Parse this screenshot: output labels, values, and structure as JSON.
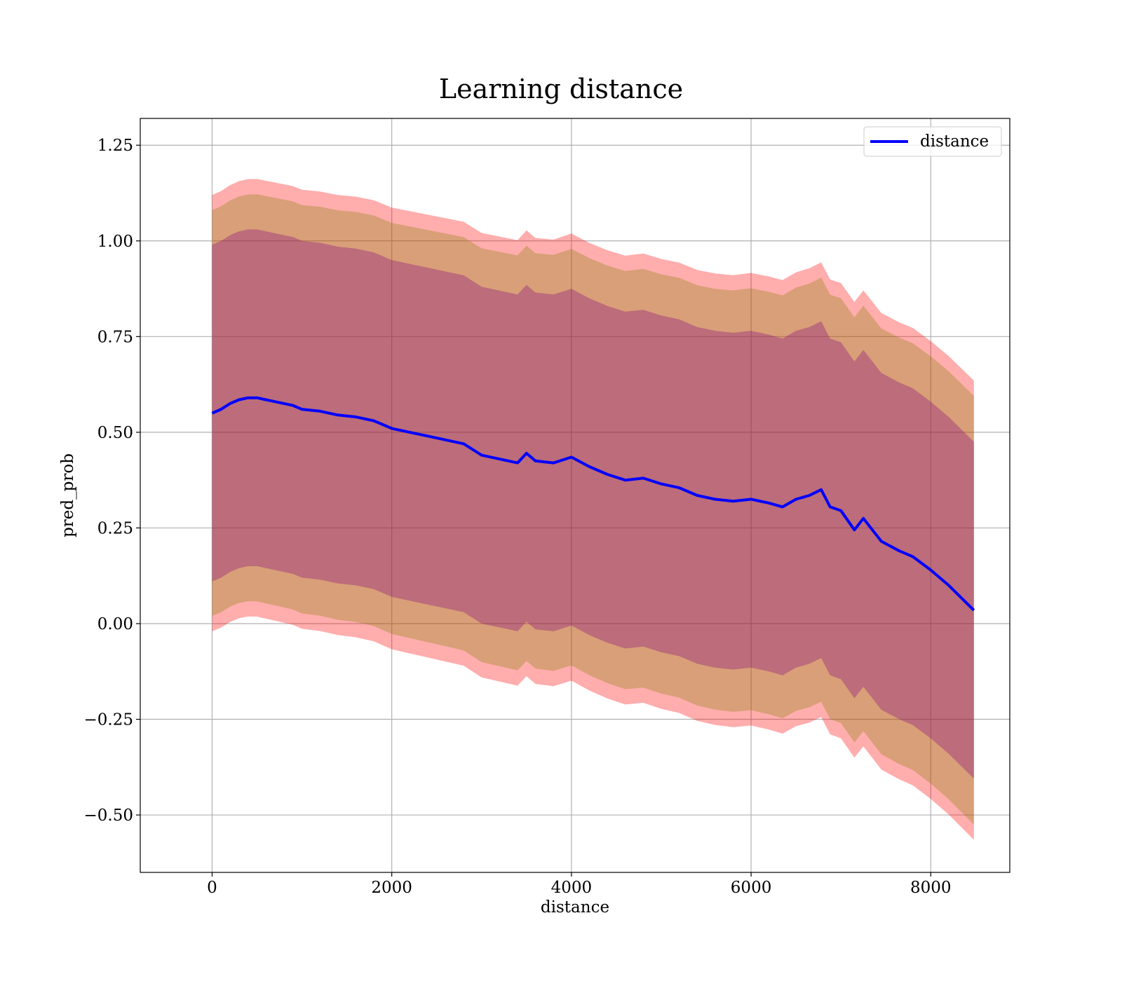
{
  "chart_data": {
    "type": "line",
    "title": "Learning distance",
    "xlabel": "distance",
    "ylabel": "pred_prob",
    "xlim": [
      -800,
      8880
    ],
    "ylim": [
      -0.65,
      1.32
    ],
    "xticks": [
      0,
      2000,
      4000,
      6000,
      8000
    ],
    "xtick_labels": [
      "0",
      "2000",
      "4000",
      "6000",
      "8000"
    ],
    "yticks": [
      -0.5,
      -0.25,
      0.0,
      0.25,
      0.5,
      0.75,
      1.0,
      1.25
    ],
    "ytick_labels": [
      "−0.50",
      "−0.25",
      "0.00",
      "0.25",
      "0.50",
      "0.75",
      "1.00",
      "1.25"
    ],
    "grid": true,
    "legend": {
      "position": "upper right",
      "entries": [
        "distance"
      ]
    },
    "colors": {
      "line": "#0000ff",
      "outer_band": "#ff0000",
      "middle_band": "#808000",
      "inner_band": "#800080"
    },
    "series": [
      {
        "name": "distance",
        "x": [
          0,
          100,
          200,
          300,
          400,
          500,
          600,
          700,
          800,
          900,
          1000,
          1200,
          1400,
          1600,
          1800,
          2000,
          2200,
          2400,
          2600,
          2800,
          3000,
          3200,
          3400,
          3500,
          3600,
          3800,
          4000,
          4200,
          4400,
          4600,
          4800,
          5000,
          5200,
          5400,
          5600,
          5800,
          6000,
          6200,
          6350,
          6500,
          6650,
          6780,
          6880,
          7000,
          7150,
          7250,
          7450,
          7650,
          7800,
          8000,
          8200,
          8480
        ],
        "y": [
          0.55,
          0.56,
          0.575,
          0.585,
          0.59,
          0.59,
          0.585,
          0.58,
          0.575,
          0.57,
          0.56,
          0.555,
          0.545,
          0.54,
          0.53,
          0.51,
          0.5,
          0.49,
          0.48,
          0.47,
          0.44,
          0.43,
          0.42,
          0.445,
          0.425,
          0.42,
          0.435,
          0.41,
          0.39,
          0.375,
          0.38,
          0.365,
          0.355,
          0.335,
          0.325,
          0.32,
          0.325,
          0.315,
          0.305,
          0.325,
          0.335,
          0.35,
          0.305,
          0.295,
          0.245,
          0.275,
          0.215,
          0.19,
          0.175,
          0.14,
          0.1,
          0.035
        ],
        "bands": [
          {
            "label": "outer",
            "halfwidth": [
              0.57,
              0.6
            ]
          },
          {
            "label": "middle",
            "halfwidth": [
              0.53,
              0.56
            ]
          },
          {
            "label": "inner",
            "halfwidth": [
              0.44,
              0.44
            ]
          }
        ]
      }
    ]
  }
}
